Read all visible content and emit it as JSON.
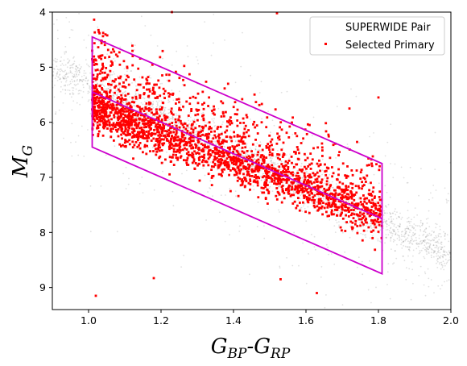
{
  "chart_data": {
    "type": "scatter",
    "xlabel": "G_BP-G_RP",
    "ylabel": "M_G",
    "xlim": [
      0.9,
      2.0
    ],
    "ylim": [
      9.4,
      4.0
    ],
    "y_inverted": true,
    "xticks": [
      "1.0",
      "1.2",
      "1.4",
      "1.6",
      "1.8",
      "2.0"
    ],
    "yticks": [
      "4",
      "5",
      "6",
      "7",
      "8",
      "9"
    ],
    "legend": {
      "placement": "top-right"
    },
    "series": [
      {
        "name": "SUPERWIDE Pair",
        "color": "#000000",
        "marker": "dot",
        "alpha": 0.12,
        "main_sequence": {
          "x_range": [
            0.9,
            2.0
          ],
          "y_at_x_0_9": 5.0,
          "slope": 3.1,
          "spread": 0.18
        }
      },
      {
        "name": "Selected Primary",
        "color": "#ff0000",
        "marker": "square",
        "trend": {
          "x_range": [
            1.01,
            1.81
          ],
          "y_at_x_1_0": 5.75,
          "slope": 2.45
        },
        "outliers": [
          [
            1.02,
            9.15
          ],
          [
            1.18,
            8.83
          ],
          [
            1.53,
            8.85
          ],
          [
            1.63,
            9.1
          ],
          [
            1.52,
            4.02
          ],
          [
            1.23,
            4.0
          ],
          [
            1.8,
            5.55
          ],
          [
            1.72,
            5.75
          ],
          [
            1.61,
            6.05
          ]
        ]
      }
    ],
    "selection_box": {
      "color": "#cc00cc",
      "corners": [
        [
          1.01,
          4.45
        ],
        [
          1.81,
          6.75
        ],
        [
          1.81,
          8.75
        ],
        [
          1.01,
          6.45
        ]
      ],
      "center_line": [
        [
          1.01,
          5.45
        ],
        [
          1.81,
          7.75
        ]
      ]
    }
  }
}
